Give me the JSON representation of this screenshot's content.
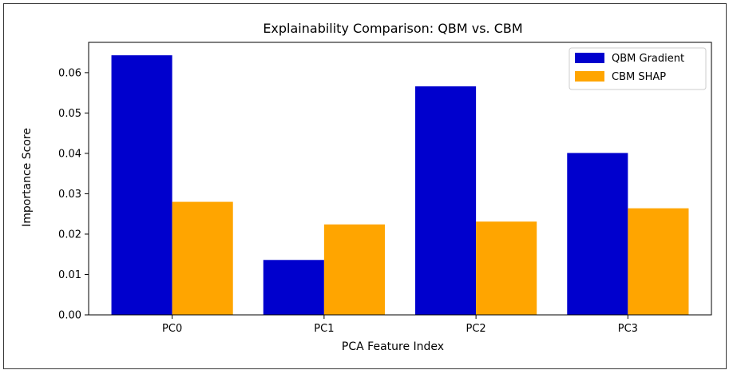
{
  "chart_data": {
    "type": "bar",
    "title": "Explainability Comparison: QBM vs. CBM",
    "xlabel": "PCA Feature Index",
    "ylabel": "Importance Score",
    "categories": [
      "PC0",
      "PC1",
      "PC2",
      "PC3"
    ],
    "series": [
      {
        "name": "QBM Gradient",
        "color": "#0000cd",
        "values": [
          0.0643,
          0.0136,
          0.0566,
          0.0401
        ]
      },
      {
        "name": "CBM SHAP",
        "color": "#ffa500",
        "values": [
          0.028,
          0.0224,
          0.0231,
          0.0264
        ]
      }
    ],
    "ylim": [
      0,
      0.0675
    ],
    "yticks": [
      0.0,
      0.01,
      0.02,
      0.03,
      0.04,
      0.05,
      0.06
    ],
    "ytick_labels": [
      "0.00",
      "0.01",
      "0.02",
      "0.03",
      "0.04",
      "0.05",
      "0.06"
    ],
    "grid": false,
    "legend": "top-right"
  }
}
